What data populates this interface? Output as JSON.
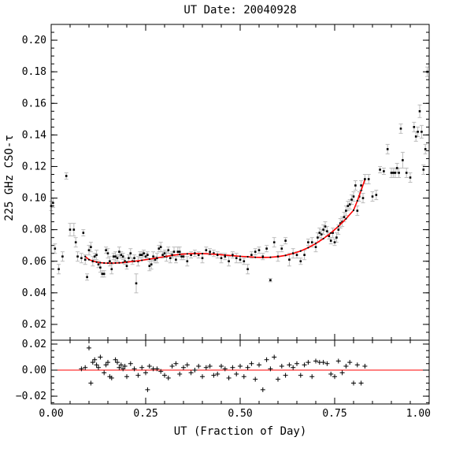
{
  "chart_data": [
    {
      "panel": "main",
      "type": "scatter",
      "title": "UT Date: 20040928",
      "xlabel": "",
      "ylabel": "225 GHz CSO-τ",
      "xlim": [
        0.0,
        1.0
      ],
      "ylim": [
        0.01,
        0.21
      ],
      "yticks": [
        0.02,
        0.04,
        0.06,
        0.08,
        0.1,
        0.12,
        0.14,
        0.16,
        0.18,
        0.2
      ],
      "ytick_labels": [
        "0.02",
        "0.04",
        "0.06",
        "0.08",
        "0.10",
        "0.12",
        "0.14",
        "0.16",
        "0.18",
        "0.20"
      ],
      "colors": {
        "points": "#000000",
        "errorbars": "#bbbbbb",
        "fit": "#ff0000"
      },
      "series": [
        {
          "kind": "measurements",
          "x": [
            0.0,
            0.005,
            0.01,
            0.02,
            0.03,
            0.04,
            0.05,
            0.06,
            0.065,
            0.07,
            0.08,
            0.085,
            0.09,
            0.095,
            0.1,
            0.105,
            0.11,
            0.115,
            0.12,
            0.125,
            0.13,
            0.135,
            0.14,
            0.145,
            0.15,
            0.155,
            0.16,
            0.165,
            0.17,
            0.175,
            0.18,
            0.185,
            0.19,
            0.195,
            0.2,
            0.205,
            0.21,
            0.215,
            0.22,
            0.225,
            0.23,
            0.235,
            0.24,
            0.245,
            0.25,
            0.255,
            0.26,
            0.265,
            0.27,
            0.275,
            0.28,
            0.285,
            0.29,
            0.295,
            0.3,
            0.305,
            0.31,
            0.315,
            0.32,
            0.325,
            0.33,
            0.335,
            0.34,
            0.345,
            0.35,
            0.36,
            0.37,
            0.38,
            0.39,
            0.4,
            0.41,
            0.42,
            0.43,
            0.44,
            0.45,
            0.46,
            0.47,
            0.48,
            0.49,
            0.5,
            0.51,
            0.52,
            0.53,
            0.54,
            0.55,
            0.56,
            0.57,
            0.58,
            0.59,
            0.6,
            0.61,
            0.62,
            0.63,
            0.64,
            0.65,
            0.66,
            0.67,
            0.68,
            0.69,
            0.7,
            0.705,
            0.71,
            0.715,
            0.72,
            0.725,
            0.73,
            0.735,
            0.74,
            0.745,
            0.75,
            0.755,
            0.76,
            0.765,
            0.77,
            0.775,
            0.78,
            0.785,
            0.79,
            0.795,
            0.8,
            0.805,
            0.81,
            0.815,
            0.82,
            0.825,
            0.83,
            0.84,
            0.85,
            0.86,
            0.87,
            0.88,
            0.89,
            0.9,
            0.905,
            0.91,
            0.915,
            0.92,
            0.925,
            0.93,
            0.94,
            0.95,
            0.96,
            0.965,
            0.97,
            0.975,
            0.98,
            0.985,
            0.99,
            0.995
          ],
          "y": [
            0.095,
            0.097,
            0.068,
            0.055,
            0.063,
            0.114,
            0.08,
            0.08,
            0.072,
            0.063,
            0.062,
            0.078,
            0.061,
            0.05,
            0.067,
            0.069,
            0.06,
            0.063,
            0.064,
            0.058,
            0.056,
            0.052,
            0.052,
            0.067,
            0.065,
            0.06,
            0.055,
            0.063,
            0.063,
            0.062,
            0.066,
            0.064,
            0.063,
            0.06,
            0.057,
            0.062,
            0.065,
            0.06,
            0.062,
            0.046,
            0.06,
            0.064,
            0.064,
            0.065,
            0.063,
            0.064,
            0.057,
            0.058,
            0.063,
            0.061,
            0.062,
            0.068,
            0.069,
            0.064,
            0.065,
            0.063,
            0.067,
            0.062,
            0.064,
            0.066,
            0.061,
            0.066,
            0.066,
            0.063,
            0.063,
            0.06,
            0.064,
            0.065,
            0.064,
            0.062,
            0.067,
            0.066,
            0.065,
            0.064,
            0.062,
            0.063,
            0.06,
            0.064,
            0.062,
            0.061,
            0.06,
            0.055,
            0.064,
            0.066,
            0.067,
            0.063,
            0.068,
            0.048,
            0.072,
            0.063,
            0.068,
            0.073,
            0.061,
            0.065,
            0.064,
            0.06,
            0.064,
            0.072,
            0.072,
            0.069,
            0.075,
            0.078,
            0.077,
            0.08,
            0.082,
            0.079,
            0.076,
            0.073,
            0.078,
            0.072,
            0.075,
            0.08,
            0.084,
            0.085,
            0.088,
            0.092,
            0.095,
            0.096,
            0.099,
            0.101,
            0.108,
            0.092,
            0.101,
            0.108,
            0.1,
            0.112,
            0.112,
            0.101,
            0.102,
            0.118,
            0.117,
            0.131,
            0.116,
            0.116,
            0.116,
            0.119,
            0.116,
            0.144,
            0.124,
            0.116,
            0.113,
            0.145,
            0.139,
            0.142,
            0.155,
            0.142,
            0.118,
            0.131,
            0.18
          ],
          "yerr": [
            0.003,
            0.003,
            0.003,
            0.003,
            0.003,
            0.002,
            0.004,
            0.004,
            0.003,
            0.003,
            0.003,
            0.002,
            0.003,
            0.002,
            0.003,
            0.003,
            0.003,
            0.002,
            0.003,
            0.002,
            0.003,
            0.002,
            0.002,
            0.002,
            0.003,
            0.003,
            0.003,
            0.002,
            0.003,
            0.002,
            0.003,
            0.002,
            0.002,
            0.002,
            0.002,
            0.002,
            0.003,
            0.002,
            0.002,
            0.006,
            0.003,
            0.002,
            0.002,
            0.002,
            0.002,
            0.002,
            0.003,
            0.003,
            0.003,
            0.002,
            0.003,
            0.002,
            0.003,
            0.002,
            0.002,
            0.003,
            0.002,
            0.003,
            0.002,
            0.003,
            0.002,
            0.003,
            0.003,
            0.002,
            0.002,
            0.003,
            0.002,
            0.002,
            0.002,
            0.003,
            0.002,
            0.002,
            0.002,
            0.002,
            0.003,
            0.002,
            0.003,
            0.002,
            0.003,
            0.002,
            0.002,
            0.003,
            0.002,
            0.002,
            0.002,
            0.002,
            0.002,
            0.001,
            0.003,
            0.003,
            0.002,
            0.002,
            0.004,
            0.003,
            0.002,
            0.002,
            0.003,
            0.002,
            0.003,
            0.003,
            0.003,
            0.003,
            0.003,
            0.003,
            0.003,
            0.003,
            0.002,
            0.002,
            0.003,
            0.002,
            0.003,
            0.003,
            0.003,
            0.003,
            0.003,
            0.003,
            0.003,
            0.003,
            0.003,
            0.003,
            0.003,
            0.003,
            0.003,
            0.003,
            0.003,
            0.003,
            0.003,
            0.003,
            0.003,
            0.002,
            0.002,
            0.003,
            0.003,
            0.003,
            0.003,
            0.003,
            0.003,
            0.003,
            0.005,
            0.003,
            0.003,
            0.003,
            0.003,
            0.003,
            0.004,
            0.004,
            0.003,
            0.003,
            0.003
          ]
        },
        {
          "kind": "fit",
          "x": [
            0.09,
            0.1,
            0.11,
            0.12,
            0.13,
            0.14,
            0.15,
            0.16,
            0.17,
            0.18,
            0.19,
            0.2,
            0.22,
            0.24,
            0.26,
            0.28,
            0.3,
            0.32,
            0.34,
            0.36,
            0.38,
            0.4,
            0.42,
            0.44,
            0.46,
            0.48,
            0.5,
            0.52,
            0.54,
            0.56,
            0.58,
            0.6,
            0.62,
            0.64,
            0.66,
            0.68,
            0.7,
            0.72,
            0.74,
            0.76,
            0.78,
            0.8,
            0.81,
            0.82,
            0.83
          ],
          "y": [
            0.063,
            0.061,
            0.0602,
            0.0595,
            0.0591,
            0.0589,
            0.0588,
            0.0588,
            0.0589,
            0.059,
            0.0592,
            0.0595,
            0.06,
            0.0606,
            0.0613,
            0.0621,
            0.0629,
            0.0637,
            0.0643,
            0.0647,
            0.0648,
            0.0648,
            0.0646,
            0.0643,
            0.0639,
            0.0635,
            0.0631,
            0.0628,
            0.0625,
            0.0624,
            0.0625,
            0.0629,
            0.0637,
            0.0649,
            0.0665,
            0.0686,
            0.0712,
            0.0743,
            0.0779,
            0.0821,
            0.0869,
            0.0923,
            0.0983,
            0.1048,
            0.1118
          ]
        }
      ]
    },
    {
      "panel": "residuals",
      "type": "scatter",
      "xlabel": "UT (Fraction of Day)",
      "ylabel": "",
      "xlim": [
        0.0,
        1.0
      ],
      "ylim": [
        -0.026,
        0.023
      ],
      "xticks": [
        0.0,
        0.25,
        0.5,
        0.75,
        1.0
      ],
      "xtick_labels": [
        "0.00",
        "0.25",
        "0.50",
        "0.75",
        "1.00"
      ],
      "yticks": [
        -0.02,
        0.0,
        0.02
      ],
      "ytick_labels": [
        "−0.02",
        "0.00",
        "0.02"
      ],
      "colors": {
        "points": "#000000",
        "zero_line": "#ff0000"
      },
      "x": [
        0.08,
        0.09,
        0.1,
        0.105,
        0.11,
        0.115,
        0.12,
        0.125,
        0.13,
        0.14,
        0.145,
        0.15,
        0.155,
        0.16,
        0.17,
        0.175,
        0.18,
        0.185,
        0.19,
        0.195,
        0.2,
        0.21,
        0.22,
        0.23,
        0.24,
        0.25,
        0.255,
        0.26,
        0.27,
        0.28,
        0.29,
        0.3,
        0.31,
        0.32,
        0.33,
        0.34,
        0.35,
        0.36,
        0.37,
        0.38,
        0.39,
        0.4,
        0.41,
        0.42,
        0.43,
        0.44,
        0.45,
        0.46,
        0.47,
        0.48,
        0.49,
        0.5,
        0.51,
        0.52,
        0.53,
        0.54,
        0.55,
        0.56,
        0.57,
        0.58,
        0.59,
        0.6,
        0.61,
        0.62,
        0.63,
        0.64,
        0.65,
        0.66,
        0.67,
        0.68,
        0.69,
        0.7,
        0.71,
        0.72,
        0.73,
        0.74,
        0.75,
        0.76,
        0.77,
        0.78,
        0.79,
        0.8,
        0.81,
        0.82,
        0.83
      ],
      "y": [
        0.001,
        0.002,
        0.017,
        -0.01,
        0.006,
        0.008,
        0.004,
        0.002,
        0.01,
        -0.002,
        0.004,
        0.006,
        -0.005,
        -0.006,
        0.008,
        0.006,
        0.002,
        0.004,
        0.001,
        0.003,
        -0.005,
        0.005,
        0.001,
        -0.004,
        0.002,
        -0.002,
        -0.015,
        0.003,
        0.001,
        0.001,
        -0.001,
        -0.004,
        -0.006,
        0.003,
        0.005,
        -0.003,
        0.002,
        0.004,
        -0.002,
        0.0,
        0.003,
        -0.005,
        0.002,
        0.003,
        -0.004,
        -0.003,
        0.003,
        0.001,
        -0.006,
        0.002,
        -0.003,
        0.003,
        -0.005,
        0.002,
        0.005,
        -0.007,
        0.004,
        -0.015,
        0.008,
        0.001,
        0.01,
        -0.007,
        0.003,
        -0.004,
        0.004,
        0.002,
        0.005,
        -0.004,
        0.004,
        0.006,
        -0.005,
        0.007,
        0.006,
        0.006,
        0.005,
        -0.003,
        -0.005,
        0.007,
        -0.002,
        0.003,
        0.006,
        -0.01,
        0.004,
        -0.01,
        0.003
      ]
    }
  ]
}
